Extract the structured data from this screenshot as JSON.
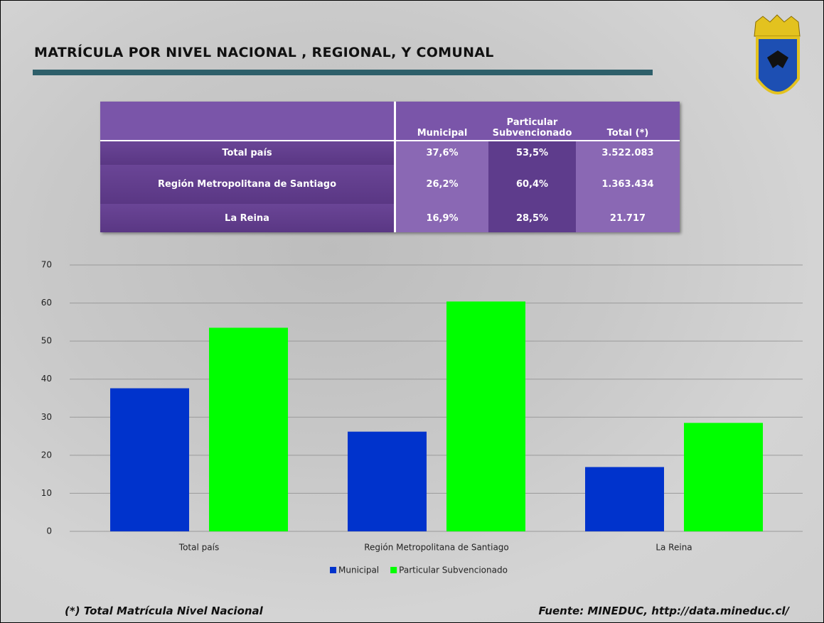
{
  "title": "MATRÍCULA  POR NIVEL NACIONAL , REGIONAL, Y COMUNAL",
  "table": {
    "header": [
      "Municipal",
      "Particular Subvencionado",
      "Total (*)"
    ],
    "rows": [
      [
        "Total país",
        "37,6%",
        "53,5%",
        "3.522.083"
      ],
      [
        "Región Metropolitana de Santiago",
        "26,2%",
        "60,4%",
        "1.363.434"
      ],
      [
        "La Reina",
        "16,9%",
        "28,5%",
        "21.717"
      ]
    ]
  },
  "chart_data": {
    "type": "bar",
    "categories": [
      "Total país",
      "Región Metropolitana de Santiago",
      "La Reina"
    ],
    "series": [
      {
        "name": "Municipal",
        "color": "#0033cc",
        "values": [
          37.6,
          26.2,
          16.9
        ]
      },
      {
        "name": "Particular Subvencionado",
        "color": "#00ff00",
        "values": [
          53.5,
          60.4,
          28.5
        ]
      }
    ],
    "ylim": [
      0,
      70
    ],
    "yticks": [
      0,
      10,
      20,
      30,
      40,
      50,
      60,
      70
    ],
    "grid": true,
    "legend": "bottom"
  },
  "footnote": "(*) Total Matrícula Nivel Nacional",
  "source": "Fuente: MINEDUC, http://data.mineduc.cl/"
}
